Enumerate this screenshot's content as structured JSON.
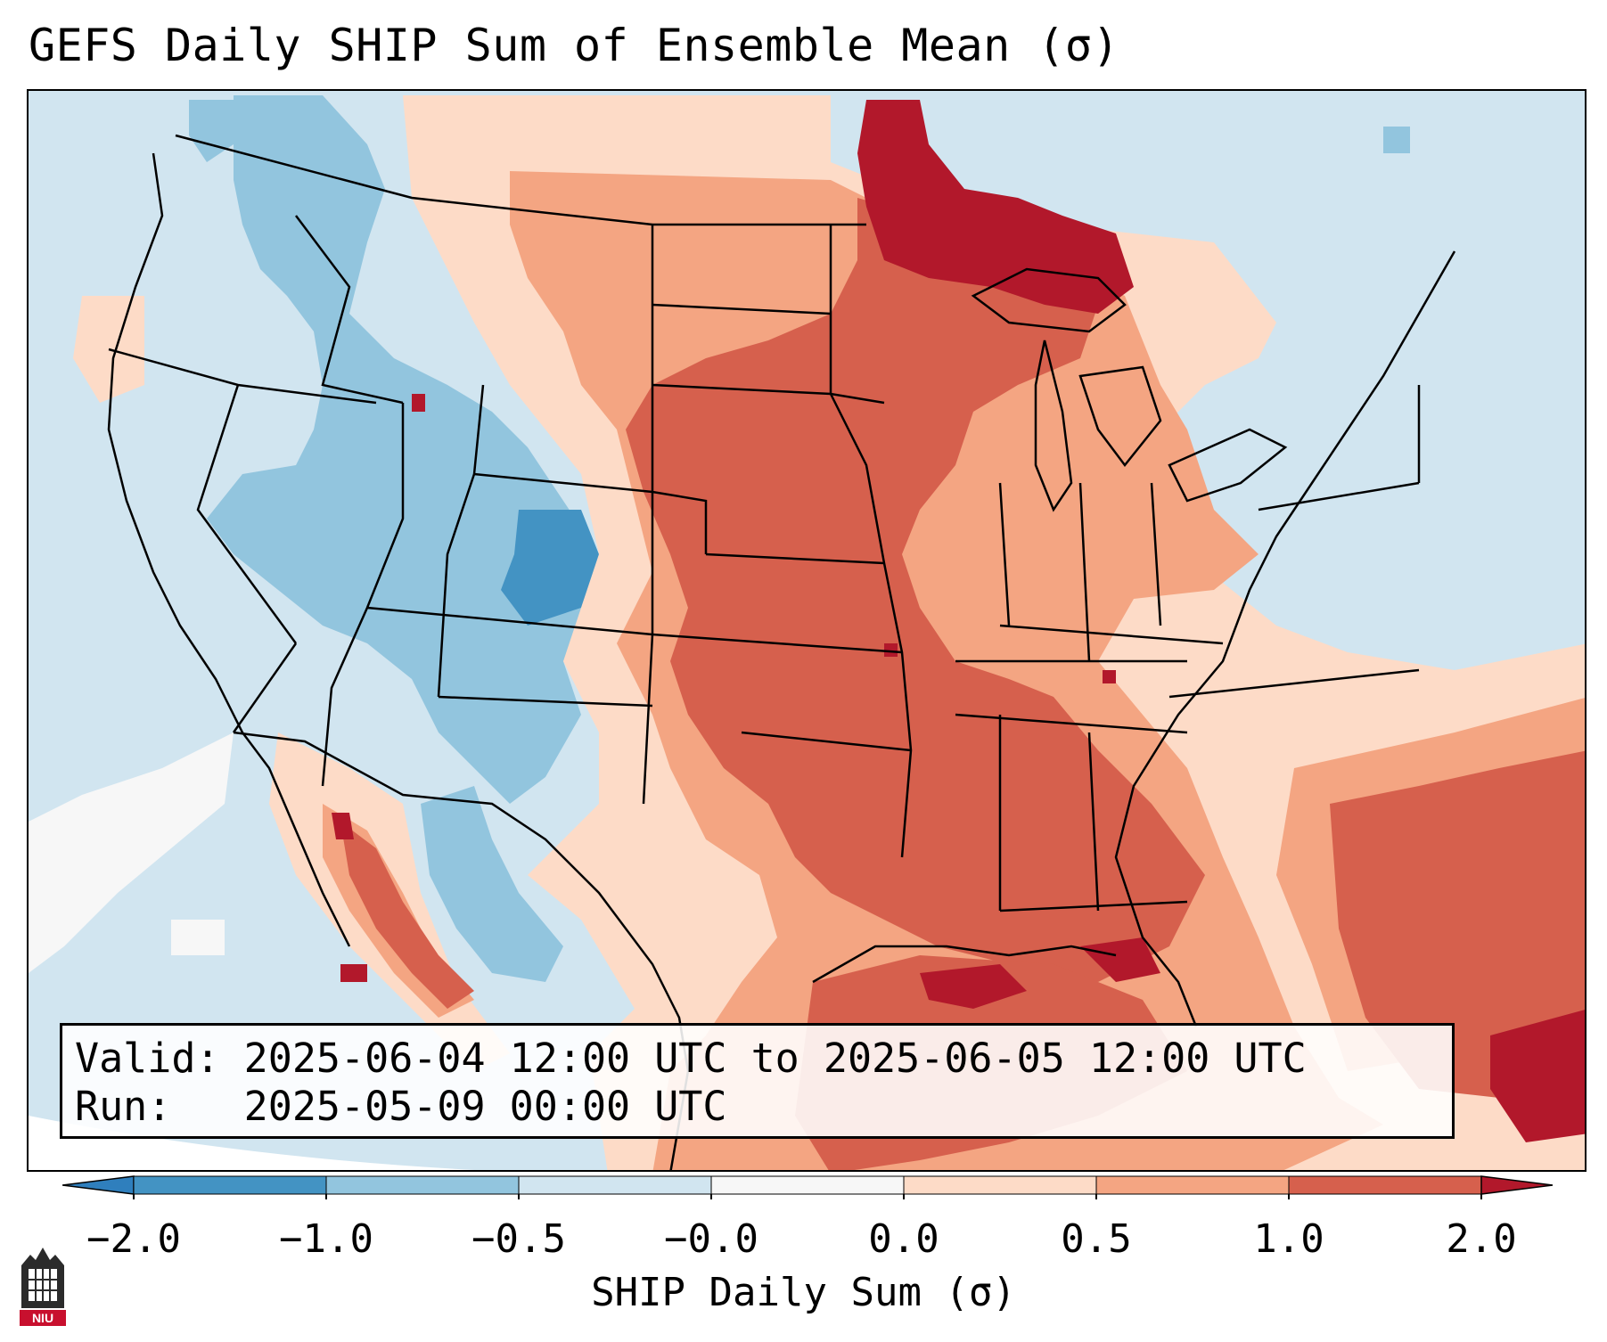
{
  "title": "GEFS Daily SHIP Sum of Ensemble Mean (σ)",
  "info": {
    "valid_line": "Valid: 2025-06-04 12:00 UTC to 2025-06-05 12:00 UTC",
    "run_line": "Run:   2025-05-09 00:00 UTC"
  },
  "colorbar": {
    "label": "SHIP Daily Sum (σ)",
    "ticks": [
      "−2.0",
      "−1.0",
      "−0.5",
      "−0.0",
      "0.0",
      "0.5",
      "1.0",
      "2.0"
    ],
    "bins": [
      {
        "range": "<-2.0",
        "color": "#2f7fbd"
      },
      {
        "range": "-2.0 to -1.0",
        "color": "#4393c3"
      },
      {
        "range": "-1.0 to -0.5",
        "color": "#92c5de"
      },
      {
        "range": "-0.5 to -0.0",
        "color": "#d1e5f0"
      },
      {
        "range": "-0.0 to 0.0",
        "color": "#f7f7f7"
      },
      {
        "range": "0.0 to 0.5",
        "color": "#fddbc7"
      },
      {
        "range": "0.5 to 1.0",
        "color": "#f4a582"
      },
      {
        "range": "1.0 to 2.0",
        "color": "#d6604d"
      },
      {
        "range": ">2.0",
        "color": "#b2182b"
      }
    ]
  },
  "logo": {
    "text": "NIU",
    "icon": "niu-logo"
  }
}
